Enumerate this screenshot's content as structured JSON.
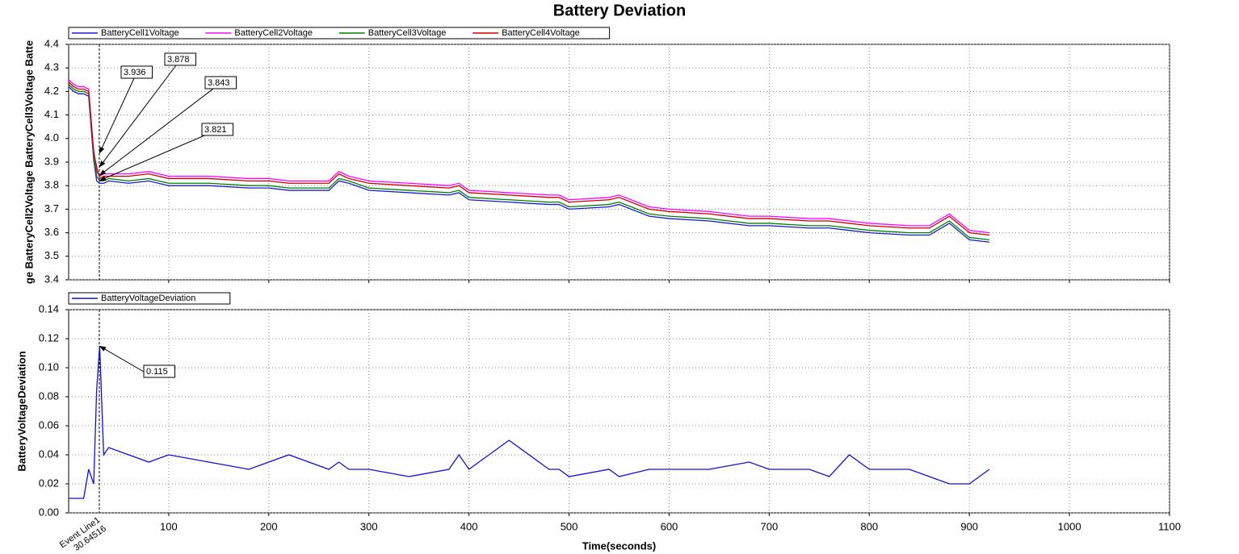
{
  "chart_data": [
    {
      "type": "line",
      "title": "Battery Deviation",
      "y_label": "ge BatteryCell2Voltage BatteryCell3Voltage Batte",
      "x": [
        0,
        5,
        10,
        15,
        20,
        25,
        28,
        31,
        35,
        40,
        60,
        80,
        100,
        140,
        180,
        200,
        220,
        260,
        270,
        280,
        300,
        340,
        380,
        390,
        400,
        440,
        480,
        490,
        500,
        540,
        550,
        580,
        600,
        640,
        680,
        700,
        740,
        760,
        780,
        800,
        840,
        860,
        880,
        900,
        920
      ],
      "series": [
        {
          "name": "BatteryCell1Voltage",
          "color": "#1a1acc",
          "values": [
            4.22,
            4.2,
            4.19,
            4.19,
            4.18,
            3.91,
            3.82,
            3.81,
            3.81,
            3.82,
            3.81,
            3.82,
            3.8,
            3.8,
            3.79,
            3.79,
            3.78,
            3.78,
            3.82,
            3.81,
            3.78,
            3.77,
            3.76,
            3.77,
            3.74,
            3.73,
            3.72,
            3.72,
            3.7,
            3.71,
            3.72,
            3.67,
            3.66,
            3.65,
            3.63,
            3.63,
            3.62,
            3.62,
            3.61,
            3.6,
            3.59,
            3.59,
            3.64,
            3.57,
            3.56
          ]
        },
        {
          "name": "BatteryCell2Voltage",
          "color": "#ff00ff",
          "values": [
            4.25,
            4.23,
            4.22,
            4.22,
            4.21,
            3.95,
            3.86,
            3.84,
            3.85,
            3.85,
            3.85,
            3.86,
            3.84,
            3.84,
            3.83,
            3.83,
            3.82,
            3.82,
            3.86,
            3.84,
            3.82,
            3.81,
            3.8,
            3.81,
            3.78,
            3.77,
            3.76,
            3.76,
            3.74,
            3.75,
            3.76,
            3.71,
            3.7,
            3.69,
            3.67,
            3.67,
            3.66,
            3.66,
            3.65,
            3.64,
            3.63,
            3.63,
            3.68,
            3.61,
            3.6
          ]
        },
        {
          "name": "BatteryCell3Voltage",
          "color": "#008000",
          "values": [
            4.23,
            4.21,
            4.2,
            4.2,
            4.19,
            3.92,
            3.84,
            3.82,
            3.82,
            3.83,
            3.82,
            3.83,
            3.81,
            3.81,
            3.8,
            3.8,
            3.79,
            3.79,
            3.83,
            3.82,
            3.79,
            3.78,
            3.77,
            3.78,
            3.75,
            3.74,
            3.73,
            3.73,
            3.71,
            3.72,
            3.73,
            3.68,
            3.67,
            3.66,
            3.64,
            3.64,
            3.63,
            3.63,
            3.62,
            3.61,
            3.6,
            3.6,
            3.65,
            3.58,
            3.57
          ]
        },
        {
          "name": "BatteryCell4Voltage",
          "color": "#cc0000",
          "values": [
            4.24,
            4.22,
            4.21,
            4.21,
            4.2,
            3.94,
            3.88,
            3.83,
            3.84,
            3.84,
            3.84,
            3.85,
            3.83,
            3.83,
            3.82,
            3.82,
            3.81,
            3.81,
            3.85,
            3.83,
            3.81,
            3.8,
            3.79,
            3.8,
            3.77,
            3.76,
            3.75,
            3.75,
            3.73,
            3.74,
            3.75,
            3.7,
            3.69,
            3.68,
            3.66,
            3.66,
            3.65,
            3.65,
            3.64,
            3.63,
            3.62,
            3.62,
            3.67,
            3.6,
            3.59
          ]
        }
      ],
      "annotations": [
        {
          "x": 30.64516,
          "y": 3.936
        },
        {
          "x": 30.64516,
          "y": 3.878
        },
        {
          "x": 30.64516,
          "y": 3.843
        },
        {
          "x": 30.64516,
          "y": 3.821
        }
      ],
      "xlim": [
        0,
        1100
      ],
      "ylim": [
        3.4,
        4.4
      ],
      "yticks": [
        3.4,
        3.5,
        3.6,
        3.7,
        3.8,
        3.9,
        {
          "value": 4,
          "label": "4.0"
        },
        4.1,
        4.2,
        4.3,
        4.4
      ],
      "grid": true,
      "legend": "top-left"
    },
    {
      "type": "line",
      "x_label": "Time(seconds)",
      "y_label": "BatteryVoltageDeviation",
      "x": [
        0,
        5,
        10,
        15,
        20,
        25,
        28,
        31,
        35,
        40,
        60,
        80,
        100,
        140,
        180,
        200,
        220,
        260,
        270,
        280,
        300,
        340,
        380,
        390,
        400,
        440,
        480,
        490,
        500,
        540,
        550,
        580,
        600,
        640,
        680,
        700,
        740,
        760,
        780,
        800,
        840,
        860,
        880,
        900,
        920
      ],
      "series": [
        {
          "name": "BatteryVoltageDeviation",
          "color": "#1010d0",
          "values": [
            0.01,
            0.01,
            0.01,
            0.01,
            0.03,
            0.02,
            0.085,
            0.115,
            0.04,
            0.045,
            0.04,
            0.035,
            0.04,
            0.035,
            0.03,
            0.035,
            0.04,
            0.03,
            0.035,
            0.03,
            0.03,
            0.025,
            0.03,
            0.04,
            0.03,
            0.05,
            0.03,
            0.03,
            0.025,
            0.03,
            0.025,
            0.03,
            0.03,
            0.03,
            0.035,
            0.03,
            0.03,
            0.025,
            0.04,
            0.03,
            0.03,
            0.025,
            0.02,
            0.02,
            0.03
          ]
        }
      ],
      "annotations": [
        {
          "x": 30.64516,
          "y": 0.115
        }
      ],
      "event_line": {
        "label": "Event Line1",
        "x": 30.64516
      },
      "xlim": [
        0,
        1100
      ],
      "ylim": [
        0,
        0.14
      ],
      "xticks": [
        100,
        200,
        300,
        400,
        500,
        600,
        700,
        800,
        900,
        1000,
        1100
      ],
      "yticks": [
        {
          "value": 0,
          "label": "0.00"
        },
        {
          "value": 0.02,
          "label": "0.02"
        },
        {
          "value": 0.04,
          "label": "0.04"
        },
        {
          "value": 0.06,
          "label": "0.06"
        },
        {
          "value": 0.08,
          "label": "0.08"
        },
        {
          "value": 0.1,
          "label": "0.10"
        },
        {
          "value": 0.12,
          "label": "0.12"
        },
        {
          "value": 0.14,
          "label": "0.14"
        }
      ],
      "grid": true,
      "legend": "top-left"
    }
  ]
}
